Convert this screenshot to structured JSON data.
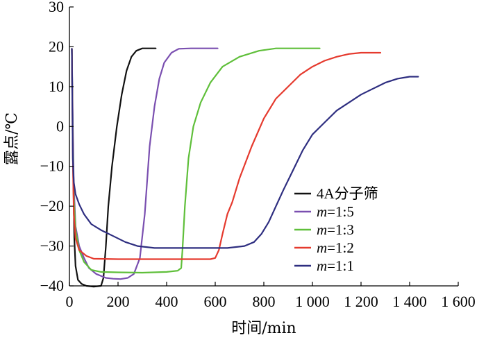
{
  "chart_data": {
    "type": "line",
    "title": "",
    "xlabel": "时间/min",
    "ylabel": "露点/℃",
    "xlim": [
      0,
      1600
    ],
    "ylim": [
      -40,
      30
    ],
    "xticks": [
      0,
      200,
      400,
      600,
      800,
      1000,
      1200,
      1400,
      1600
    ],
    "xtick_labels": [
      "0",
      "200",
      "400",
      "600",
      "800",
      "1 000",
      "1 200",
      "1 400",
      "1 600"
    ],
    "yticks": [
      -40,
      -30,
      -20,
      -10,
      0,
      10,
      20,
      30
    ],
    "ytick_labels": [
      "−40",
      "−30",
      "−20",
      "−10",
      "0",
      "10",
      "20",
      "30"
    ],
    "grid": false,
    "legend_position": "center-right",
    "series": [
      {
        "name": "4A分子筛",
        "color": "#111111",
        "points": [
          [
            10,
            19.5
          ],
          [
            15,
            -10
          ],
          [
            20,
            -28
          ],
          [
            25,
            -35
          ],
          [
            35,
            -38.5
          ],
          [
            50,
            -39.5
          ],
          [
            70,
            -40
          ],
          [
            100,
            -40.2
          ],
          [
            130,
            -40
          ],
          [
            140,
            -38
          ],
          [
            150,
            -30
          ],
          [
            160,
            -20
          ],
          [
            175,
            -10
          ],
          [
            195,
            0
          ],
          [
            215,
            8
          ],
          [
            235,
            14
          ],
          [
            255,
            17.5
          ],
          [
            275,
            19
          ],
          [
            300,
            19.6
          ],
          [
            355,
            19.6
          ]
        ]
      },
      {
        "name": "m=1:5",
        "color": "#7a4fb0",
        "points": [
          [
            10,
            19.5
          ],
          [
            14,
            0
          ],
          [
            18,
            -15
          ],
          [
            25,
            -25
          ],
          [
            40,
            -30
          ],
          [
            60,
            -33
          ],
          [
            80,
            -35.5
          ],
          [
            110,
            -37
          ],
          [
            150,
            -38
          ],
          [
            180,
            -38.2
          ],
          [
            210,
            -38.3
          ],
          [
            240,
            -38
          ],
          [
            265,
            -37
          ],
          [
            290,
            -33
          ],
          [
            310,
            -22
          ],
          [
            330,
            -5
          ],
          [
            350,
            5
          ],
          [
            370,
            12
          ],
          [
            390,
            16
          ],
          [
            420,
            18.5
          ],
          [
            450,
            19.5
          ],
          [
            500,
            19.6
          ],
          [
            610,
            19.6
          ]
        ]
      },
      {
        "name": "m=1:3",
        "color": "#5fbf3a",
        "points": [
          [
            10,
            19.5
          ],
          [
            14,
            -5
          ],
          [
            18,
            -18
          ],
          [
            25,
            -26
          ],
          [
            40,
            -31
          ],
          [
            60,
            -34
          ],
          [
            90,
            -36
          ],
          [
            130,
            -36.5
          ],
          [
            200,
            -36.6
          ],
          [
            300,
            -36.7
          ],
          [
            400,
            -36.5
          ],
          [
            445,
            -36.2
          ],
          [
            460,
            -35.5
          ],
          [
            465,
            -31
          ],
          [
            475,
            -20
          ],
          [
            490,
            -8
          ],
          [
            510,
            0
          ],
          [
            540,
            6
          ],
          [
            580,
            11
          ],
          [
            630,
            15
          ],
          [
            700,
            17.5
          ],
          [
            780,
            19
          ],
          [
            850,
            19.6
          ],
          [
            1030,
            19.6
          ]
        ]
      },
      {
        "name": "m=1:2",
        "color": "#e53a2e",
        "points": [
          [
            10,
            19.5
          ],
          [
            14,
            -8
          ],
          [
            18,
            -22
          ],
          [
            25,
            -28
          ],
          [
            40,
            -31
          ],
          [
            70,
            -32.5
          ],
          [
            100,
            -33.2
          ],
          [
            200,
            -33.3
          ],
          [
            400,
            -33.3
          ],
          [
            580,
            -33.3
          ],
          [
            600,
            -33
          ],
          [
            615,
            -31
          ],
          [
            630,
            -27
          ],
          [
            650,
            -22
          ],
          [
            670,
            -19
          ],
          [
            700,
            -13
          ],
          [
            750,
            -5
          ],
          [
            800,
            2
          ],
          [
            850,
            7
          ],
          [
            900,
            10
          ],
          [
            950,
            13
          ],
          [
            1000,
            15
          ],
          [
            1050,
            16.5
          ],
          [
            1100,
            17.5
          ],
          [
            1150,
            18.2
          ],
          [
            1200,
            18.5
          ],
          [
            1280,
            18.5
          ]
        ]
      },
      {
        "name": "m=1:1",
        "color": "#2e2e80",
        "points": [
          [
            10,
            19.5
          ],
          [
            14,
            -8
          ],
          [
            18,
            -14
          ],
          [
            25,
            -17
          ],
          [
            40,
            -19.5
          ],
          [
            60,
            -22
          ],
          [
            90,
            -24.5
          ],
          [
            130,
            -26
          ],
          [
            180,
            -27.5
          ],
          [
            230,
            -29
          ],
          [
            280,
            -30
          ],
          [
            350,
            -30.5
          ],
          [
            500,
            -30.5
          ],
          [
            650,
            -30.5
          ],
          [
            720,
            -30
          ],
          [
            760,
            -29
          ],
          [
            790,
            -27
          ],
          [
            820,
            -24
          ],
          [
            850,
            -20
          ],
          [
            880,
            -16
          ],
          [
            920,
            -11
          ],
          [
            960,
            -6
          ],
          [
            1000,
            -2
          ],
          [
            1050,
            1
          ],
          [
            1100,
            4
          ],
          [
            1150,
            6
          ],
          [
            1200,
            8
          ],
          [
            1250,
            9.5
          ],
          [
            1300,
            11
          ],
          [
            1350,
            12
          ],
          [
            1400,
            12.5
          ],
          [
            1435,
            12.5
          ]
        ]
      }
    ]
  }
}
